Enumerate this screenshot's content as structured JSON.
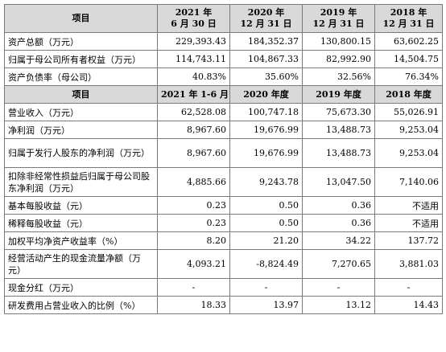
{
  "header1": {
    "item_label": "项目",
    "cols": [
      {
        "line1": "2021 年",
        "line2": "6 月 30 日"
      },
      {
        "line1": "2020 年",
        "line2": "12 月 31 日"
      },
      {
        "line1": "2019 年",
        "line2": "12 月 31 日"
      },
      {
        "line1": "2018 年",
        "line2": "12 月 31 日"
      }
    ]
  },
  "balance_rows": [
    {
      "label": "资产总额（万元）",
      "values": [
        "229,393.43",
        "184,352.37",
        "130,800.15",
        "63,602.25"
      ]
    },
    {
      "label": "归属于母公司所有者权益（万元）",
      "values": [
        "114,743.11",
        "104,867.33",
        "82,992.90",
        "14,504.75"
      ]
    },
    {
      "label": "资产负债率（母公司）",
      "values": [
        "40.83%",
        "35.60%",
        "32.56%",
        "76.34%"
      ]
    }
  ],
  "header2": {
    "item_label": "项目",
    "cols": [
      "2021 年 1-6 月",
      "2020 年度",
      "2019 年度",
      "2018 年度"
    ]
  },
  "income_rows": [
    {
      "label": "营业收入（万元）",
      "values": [
        "62,528.08",
        "100,747.18",
        "75,673.30",
        "55,026.91"
      ]
    },
    {
      "label": "净利润（万元）",
      "values": [
        "8,967.60",
        "19,676.99",
        "13,488.73",
        "9,253.04"
      ]
    },
    {
      "label": "归属于发行人股东的净利润（万元）",
      "values": [
        "8,967.60",
        "19,676.99",
        "13,488.73",
        "9,253.04"
      ],
      "tall": true
    },
    {
      "label": "扣除非经常性损益后归属于母公司股东净利润（万元）",
      "values": [
        "4,885.66",
        "9,243.78",
        "13,047.50",
        "7,140.06"
      ],
      "tall": true
    },
    {
      "label": "基本每股收益（元）",
      "values": [
        "0.23",
        "0.50",
        "0.36",
        "不适用"
      ]
    },
    {
      "label": "稀释每股收益（元）",
      "values": [
        "0.23",
        "0.50",
        "0.36",
        "不适用"
      ]
    },
    {
      "label": "加权平均净资产收益率（%）",
      "values": [
        "8.20",
        "21.20",
        "34.22",
        "137.72"
      ]
    },
    {
      "label": "经营活动产生的现金流量净额（万元）",
      "values": [
        "4,093.21",
        "-8,824.49",
        "7,270.65",
        "3,881.03"
      ],
      "tall": true
    },
    {
      "label": "现金分红（万元）",
      "values": [
        "-",
        "-",
        "-",
        "-"
      ]
    },
    {
      "label": "研发费用占营业收入的比例（%）",
      "values": [
        "18.33",
        "13.97",
        "13.12",
        "14.43"
      ]
    }
  ]
}
